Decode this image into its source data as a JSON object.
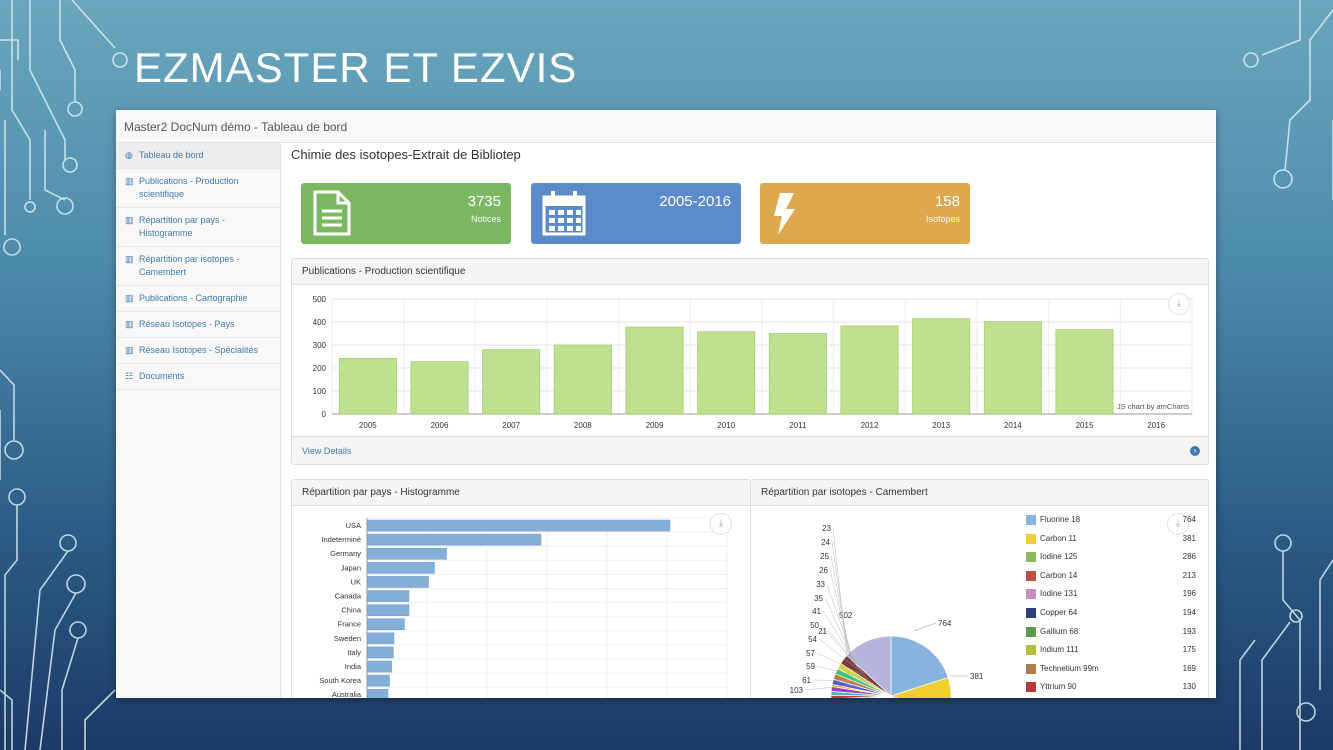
{
  "slide": {
    "title": "EZMASTER ET EZVIS"
  },
  "app": {
    "title": "Master2 DocNum démo - Tableau de bord"
  },
  "sidebar": {
    "items": [
      {
        "icon": "dashboard-icon",
        "glyph": "◍",
        "label": "Tableau de bord",
        "active": true
      },
      {
        "icon": "bar-chart-icon",
        "glyph": "▥",
        "label": "Publications - Production scientifique"
      },
      {
        "icon": "bar-chart-icon",
        "glyph": "▥",
        "label": "Répartition par pays - Histogramme"
      },
      {
        "icon": "bar-chart-icon",
        "glyph": "▥",
        "label": "Répartition par isotopes - Camembert"
      },
      {
        "icon": "bar-chart-icon",
        "glyph": "▥",
        "label": "Publications - Cartographie"
      },
      {
        "icon": "bar-chart-icon",
        "glyph": "▥",
        "label": "Réseau Isotopes - Pays"
      },
      {
        "icon": "bar-chart-icon",
        "glyph": "▥",
        "label": "Réseau Isotopes - Spécialités"
      },
      {
        "icon": "table-icon",
        "glyph": "☷",
        "label": "Documents"
      }
    ]
  },
  "main": {
    "title": "Chimie des isotopes-Extrait de Bibliotep"
  },
  "stats": [
    {
      "icon": "document-icon",
      "value": "3735",
      "label": "Notices",
      "color": "#7cb862"
    },
    {
      "icon": "calendar-icon",
      "value": "2005-2016",
      "label": "",
      "color": "#5b8bca"
    },
    {
      "icon": "bolt-icon",
      "value": "158",
      "label": "Isotopes",
      "color": "#dda84e"
    }
  ],
  "panels": {
    "publications": {
      "title": "Publications - Production scientifique",
      "footer": "View Details",
      "credit": "JS chart by amCharts"
    },
    "countries": {
      "title": "Répartition par pays - Histogramme"
    },
    "isotopes": {
      "title": "Répartition par isotopes - Camembert"
    }
  },
  "chart_data": [
    {
      "type": "bar",
      "title": "Publications - Production scientifique",
      "categories": [
        "2005",
        "2006",
        "2007",
        "2008",
        "2009",
        "2010",
        "2011",
        "2012",
        "2013",
        "2014",
        "2015",
        "2016"
      ],
      "values": [
        242,
        228,
        280,
        300,
        378,
        358,
        350,
        383,
        415,
        402,
        367,
        0
      ],
      "ylim": [
        0,
        500
      ],
      "yticks": [
        "0",
        "100",
        "200",
        "300",
        "400",
        "500"
      ],
      "grid": true,
      "color": "#bfe08e"
    },
    {
      "type": "bar",
      "orientation": "horizontal",
      "title": "Répartition par pays - Histogramme",
      "categories": [
        "USA",
        "Indeterminé",
        "Germany",
        "Japan",
        "UK",
        "Canada",
        "China",
        "France",
        "Sweden",
        "Italy",
        "India",
        "South Korea",
        "Australia"
      ],
      "values": [
        1010,
        580,
        265,
        225,
        205,
        140,
        140,
        125,
        90,
        88,
        82,
        75,
        70
      ],
      "xlim": [
        0,
        1200
      ],
      "grid": true,
      "color": "#86afd8"
    },
    {
      "type": "pie",
      "title": "Répartition par isotopes - Camembert",
      "slices": [
        {
          "name": "Fluorine 18",
          "value": 764,
          "color": "#86b4df"
        },
        {
          "name": "Carbon 11",
          "value": 381,
          "color": "#f0d030"
        },
        {
          "name": "Iodine 125",
          "value": 286,
          "color": "#8fb85e"
        },
        {
          "name": "Carbon 14",
          "value": 213,
          "color": "#c0504d"
        },
        {
          "name": "Iodine 131",
          "value": 196,
          "color": "#c98fc1"
        },
        {
          "name": "Copper 64",
          "value": 194,
          "color": "#2f3d7a"
        },
        {
          "name": "Gallium 68",
          "value": 193,
          "color": "#5a9a4a"
        },
        {
          "name": "Indium 111",
          "value": 175,
          "color": "#b8bd3a"
        },
        {
          "name": "Technetium 99m",
          "value": 169,
          "color": "#b07a4a"
        },
        {
          "name": "Yttrium 90",
          "value": 130,
          "color": "#b83a3a"
        }
      ],
      "small_labels": [
        "23",
        "24",
        "25",
        "26",
        "33",
        "35",
        "41",
        "50",
        "21",
        "54",
        "57",
        "59",
        "61",
        "103"
      ],
      "other_label": "502",
      "label_764": "764",
      "label_381": "381",
      "legend_placement": "right"
    }
  ]
}
